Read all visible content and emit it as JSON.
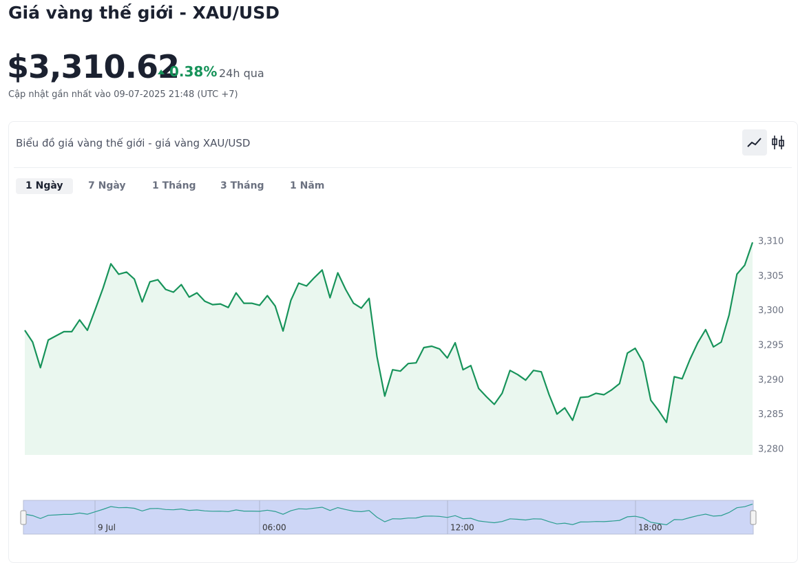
{
  "header": {
    "title": "Giá vàng thế giới - XAU/USD",
    "price": "$3,310.62",
    "change": "0.38%",
    "period": "24h qua",
    "updated": "Cập nhật gần nhất vào 09-07-2025 21:48 (UTC +7)"
  },
  "card": {
    "title": "Biểu đồ giá vàng thế giới - giá vàng XAU/USD",
    "tabs": [
      "1 Ngày",
      "7 Ngày",
      "1 Tháng",
      "3 Tháng",
      "1 Năm"
    ]
  },
  "chart_data": {
    "type": "line",
    "color": "#17935a",
    "fill": "#eaf7ef",
    "values": [
      3297.2,
      3295.5,
      3291.8,
      3295.8,
      3296.4,
      3297.0,
      3297.0,
      3298.7,
      3297.2,
      3300.2,
      3303.3,
      3306.8,
      3305.3,
      3305.6,
      3304.6,
      3301.3,
      3304.2,
      3304.5,
      3303.1,
      3302.7,
      3303.8,
      3302.0,
      3302.6,
      3301.4,
      3300.9,
      3301.0,
      3300.5,
      3302.6,
      3301.1,
      3301.1,
      3300.8,
      3302.2,
      3300.7,
      3297.1,
      3301.5,
      3304.0,
      3303.6,
      3304.8,
      3305.9,
      3301.9,
      3305.5,
      3303.1,
      3301.1,
      3300.4,
      3301.8,
      3293.4,
      3287.7,
      3291.5,
      3291.3,
      3292.4,
      3292.5,
      3294.7,
      3294.9,
      3294.5,
      3293.2,
      3295.4,
      3291.5,
      3292.1,
      3288.8,
      3287.6,
      3286.5,
      3288.1,
      3291.4,
      3290.8,
      3290.0,
      3291.4,
      3291.2,
      3287.9,
      3285.1,
      3286.0,
      3284.2,
      3287.5,
      3287.6,
      3288.1,
      3287.9,
      3288.6,
      3289.5,
      3293.9,
      3294.6,
      3292.6,
      3287.1,
      3285.6,
      3283.9,
      3290.5,
      3290.2,
      3293.0,
      3295.4,
      3297.3,
      3294.8,
      3295.5,
      3299.4,
      3305.3,
      3306.6,
      3309.9
    ],
    "ylim": [
      3279.2,
      3311.1
    ],
    "yticks": [
      {
        "value": 3280,
        "label": "3,280"
      },
      {
        "value": 3285,
        "label": "3,285"
      },
      {
        "value": 3290,
        "label": "3,290"
      },
      {
        "value": 3295,
        "label": "3,295"
      },
      {
        "value": 3300,
        "label": "3,300"
      },
      {
        "value": 3305,
        "label": "3,305"
      },
      {
        "value": 3310,
        "label": "3,310"
      }
    ],
    "navigator_labels": [
      "9 Jul",
      "06:00",
      "12:00",
      "18:00"
    ]
  }
}
